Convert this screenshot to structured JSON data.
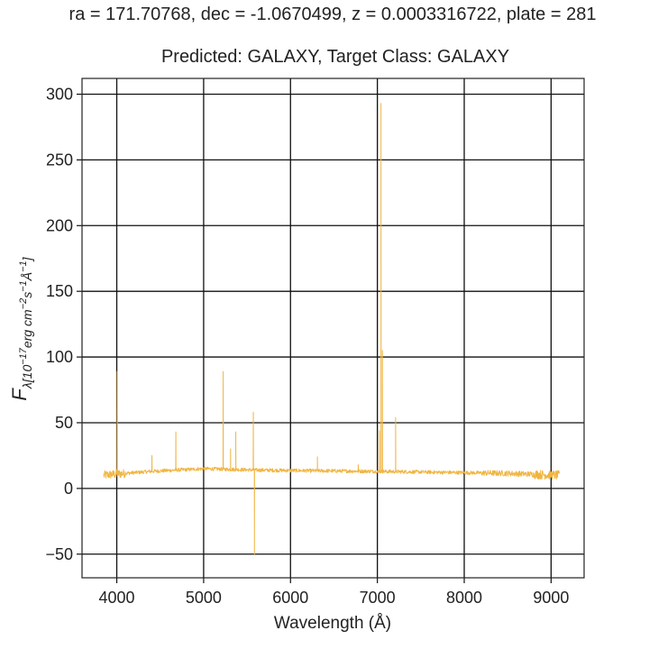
{
  "chart_data": {
    "type": "line",
    "title": "ra = 171.70768, dec = -1.0670499, z = 0.0003316722, plate = 281",
    "subtitle": "Predicted: GALAXY, Target Class: GALAXY",
    "xlabel": "Wavelength (Å)",
    "ylabel": "F_λ[10^-17 erg cm^-2 s^-1 Å^-1]",
    "xlim": [
      3600,
      9380
    ],
    "ylim": [
      -68,
      312
    ],
    "xticks": [
      4000,
      5000,
      6000,
      7000,
      8000,
      9000
    ],
    "yticks": [
      -50,
      0,
      50,
      100,
      150,
      200,
      250,
      300
    ],
    "grid": true,
    "color": "#f0b542",
    "series": [
      {
        "x_range": [
          3850,
          9100
        ],
        "continuum": [
          [
            3850,
            10
          ],
          [
            4000,
            11
          ],
          [
            4400,
            13
          ],
          [
            5000,
            15
          ],
          [
            5600,
            14
          ],
          [
            6200,
            13.5
          ],
          [
            7000,
            13
          ],
          [
            7500,
            12.5
          ],
          [
            8000,
            12
          ],
          [
            8500,
            11.5
          ],
          [
            9100,
            10
          ]
        ],
        "peaks": [
          {
            "x": 4005,
            "y": 89
          },
          {
            "x": 4405,
            "y": 25
          },
          {
            "x": 4680,
            "y": 43
          },
          {
            "x": 5225,
            "y": 89
          },
          {
            "x": 5310,
            "y": 30
          },
          {
            "x": 5370,
            "y": 43
          },
          {
            "x": 5572,
            "y": 58
          },
          {
            "x": 5585,
            "y": -50
          },
          {
            "x": 6310,
            "y": 24
          },
          {
            "x": 6780,
            "y": 18
          },
          {
            "x": 7025,
            "y": 44
          },
          {
            "x": 7042,
            "y": 293
          },
          {
            "x": 7058,
            "y": 105
          },
          {
            "x": 7210,
            "y": 54
          }
        ]
      }
    ]
  }
}
